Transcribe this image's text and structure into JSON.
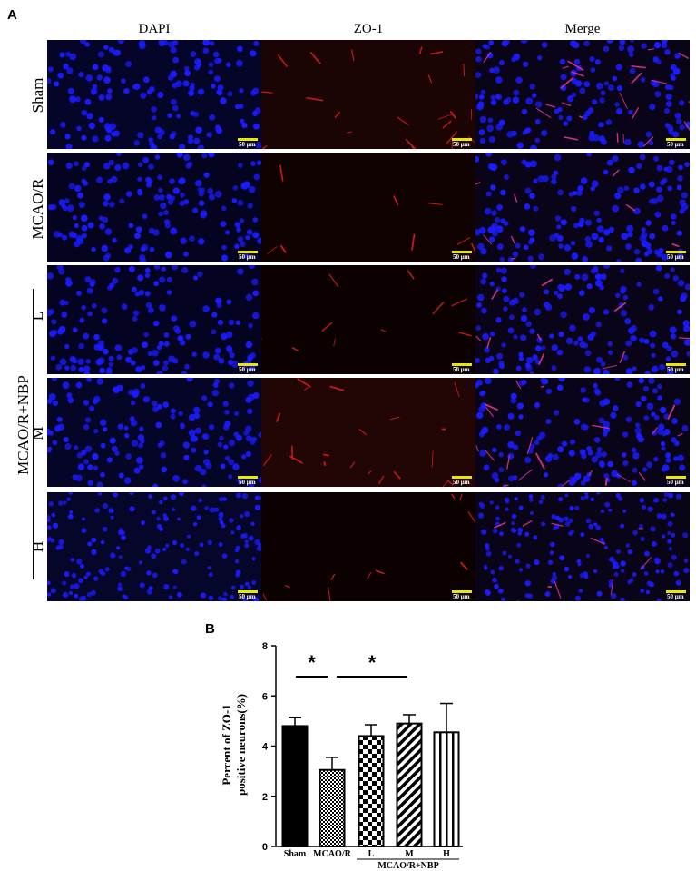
{
  "panel_a": {
    "letter": "A",
    "columns": [
      "DAPI",
      "ZO-1",
      "Merge"
    ],
    "rows": [
      "Sham",
      "MCAO/R",
      "L",
      "M",
      "H"
    ],
    "group_label": "MCAO/R+NBP",
    "scale_label": "50 μm",
    "colors": {
      "dapi": "#1b1bff",
      "zo1": "#d01818",
      "scale": "#e8e800"
    }
  },
  "panel_b": {
    "letter": "B",
    "chart_data": {
      "type": "bar",
      "categories": [
        "Sham",
        "MCAO/R",
        "L",
        "M",
        "H"
      ],
      "values": [
        4.8,
        3.05,
        4.4,
        4.9,
        4.55
      ],
      "errors": [
        0.35,
        0.5,
        0.45,
        0.35,
        1.15
      ],
      "patterns": [
        "solid",
        "checker",
        "large-checker",
        "diagonal",
        "vertical"
      ],
      "ylabel_line1": "Percent of ZO-1",
      "ylabel_line2": "positive neurons(%)",
      "ylim": [
        0,
        8
      ],
      "yticks": [
        0,
        2,
        4,
        6,
        8
      ],
      "group_label": "MCAO/R+NBP",
      "significance": [
        {
          "from": "Sham",
          "to": "MCAO/R",
          "label": "*"
        },
        {
          "from": "MCAO/R",
          "to": "M",
          "label": "*"
        }
      ]
    }
  }
}
